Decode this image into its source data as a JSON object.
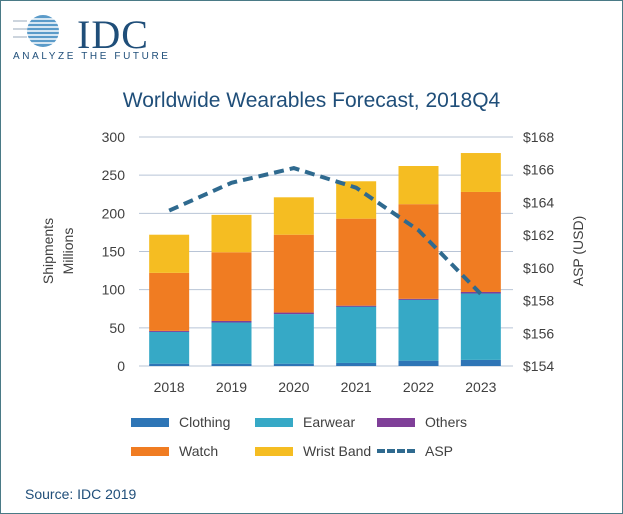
{
  "logo": {
    "name": "IDC",
    "tagline": "ANALYZE THE FUTURE"
  },
  "chart_data": {
    "type": "bar",
    "stacked": true,
    "title": "Worldwide Wearables Forecast, 2018Q4",
    "ylabel": "Shipments Millions",
    "ylabel_lines": [
      "Shipments",
      "Millions"
    ],
    "y2label": "ASP (USD)",
    "ylim": [
      0,
      300
    ],
    "y2lim": [
      154,
      168
    ],
    "yticks": [
      "0",
      "50",
      "100",
      "150",
      "200",
      "250",
      "300"
    ],
    "y2ticks": [
      "$154",
      "$156",
      "$158",
      "$160",
      "$162",
      "$164",
      "$166",
      "$168"
    ],
    "categories": [
      "2018",
      "2019",
      "2020",
      "2021",
      "2022",
      "2023"
    ],
    "series": [
      {
        "name": "Clothing",
        "color": "#2e75b6",
        "values": [
          3,
          3,
          3,
          4,
          7,
          8
        ]
      },
      {
        "name": "Earwear",
        "color": "#36a9c6",
        "values": [
          42,
          54,
          65,
          74,
          80,
          87
        ]
      },
      {
        "name": "Others",
        "color": "#7f3f98",
        "values": [
          1,
          2,
          2,
          1,
          1,
          2
        ]
      },
      {
        "name": "Watch",
        "color": "#f07c22",
        "values": [
          76,
          90,
          102,
          114,
          124,
          131
        ]
      },
      {
        "name": "Wrist Band",
        "color": "#f5bd22",
        "values": [
          50,
          49,
          49,
          49,
          50,
          51
        ]
      }
    ],
    "line": {
      "name": "ASP",
      "color": "#2f6a8f",
      "axis": "right",
      "values": [
        163.5,
        165.2,
        166.1,
        164.9,
        162.3,
        158.4
      ]
    },
    "legend_placement": "bottom",
    "grid": true
  },
  "source": "Source: IDC 2019"
}
